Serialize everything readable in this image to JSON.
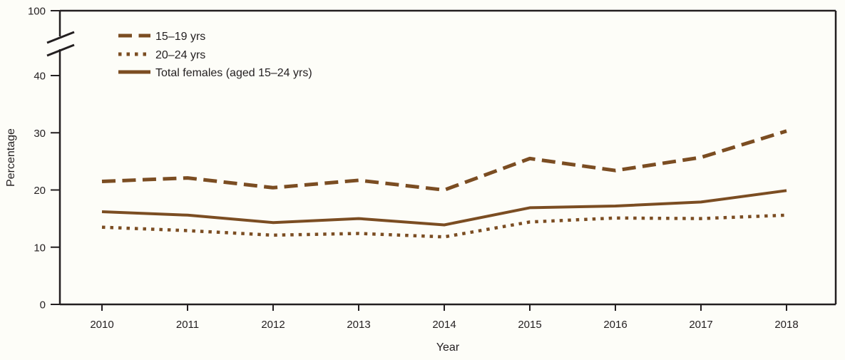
{
  "chart_data": {
    "type": "line",
    "title": "",
    "xlabel": "Year",
    "ylabel": "Percentage",
    "x": [
      2010,
      2011,
      2012,
      2013,
      2014,
      2015,
      2016,
      2017,
      2018
    ],
    "series": [
      {
        "name": "15–19 yrs",
        "style": "dashed",
        "values": [
          21.5,
          22.1,
          20.4,
          21.7,
          20.0,
          25.5,
          23.4,
          25.7,
          30.3
        ]
      },
      {
        "name": "20–24 yrs",
        "style": "dotted",
        "values": [
          13.5,
          12.9,
          12.1,
          12.4,
          11.8,
          14.4,
          15.1,
          15.0,
          15.6
        ]
      },
      {
        "name": "Total females (aged 15–24 yrs)",
        "style": "solid",
        "values": [
          16.2,
          15.6,
          14.3,
          15.0,
          13.9,
          16.9,
          17.2,
          17.9,
          19.9
        ]
      }
    ],
    "y_axis": {
      "ticks": [
        0,
        10,
        20,
        30,
        40
      ],
      "tick_labels": [
        "0",
        "10",
        "20",
        "30",
        "40"
      ],
      "top_tick_label": "100",
      "broken_axis": true,
      "ylim_shown": [
        0,
        45
      ]
    },
    "grid": false,
    "legend_position": "top-left-inside",
    "line_color": "#7b4d22",
    "axis_color": "#231f20",
    "background_color": "#fdfdf8"
  }
}
